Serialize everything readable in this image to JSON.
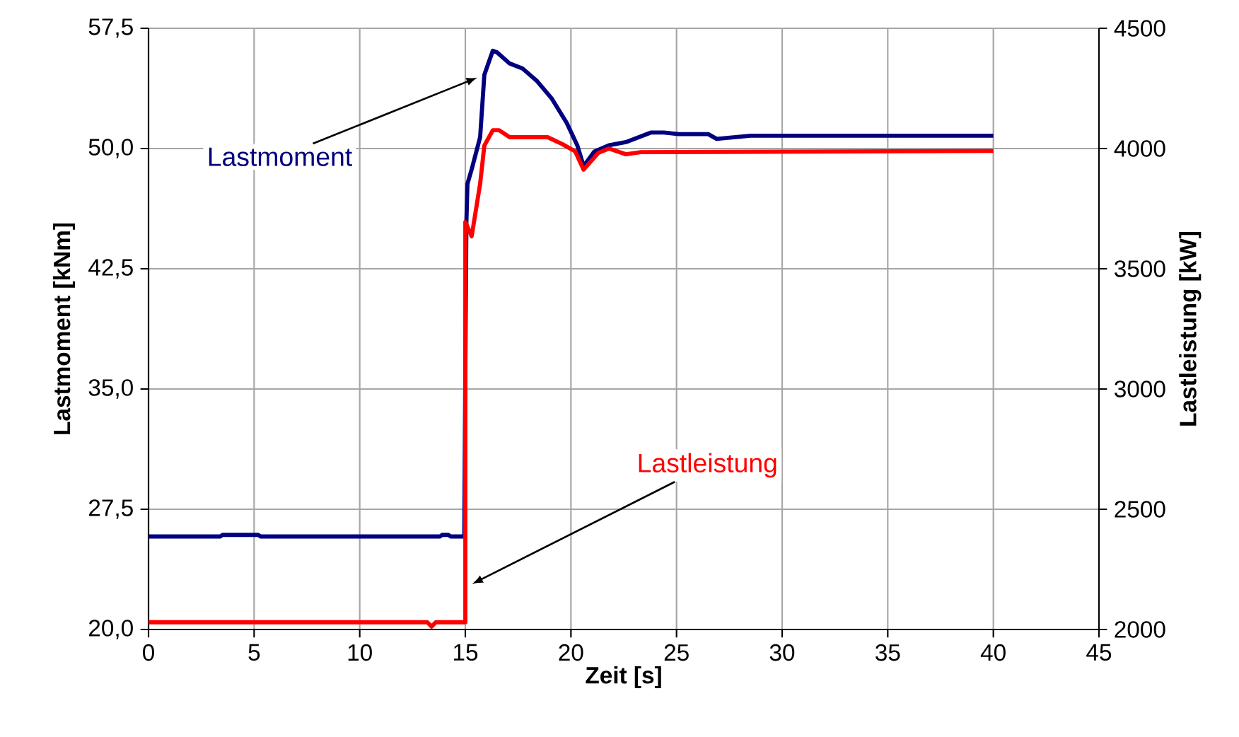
{
  "chart_data": {
    "type": "line",
    "xlabel": "Zeit [s]",
    "ylabel": "Lastmoment [kNm]",
    "y2label": "Lastleistung [kW]",
    "xlim": [
      0,
      45
    ],
    "xticks": [
      0,
      5,
      10,
      15,
      20,
      25,
      30,
      35,
      40,
      45
    ],
    "ylim": [
      20,
      57.5
    ],
    "yticks": [
      {
        "value": 20,
        "label": "20,0"
      },
      {
        "value": 27.5,
        "label": "27,5"
      },
      {
        "value": 35,
        "label": "35,0"
      },
      {
        "value": 42.5,
        "label": "42,5"
      },
      {
        "value": 50,
        "label": "50,0"
      },
      {
        "value": 57.5,
        "label": "57,5"
      }
    ],
    "y2lim": [
      2000,
      4500
    ],
    "y2ticks": [
      2000,
      2500,
      3000,
      3500,
      4000,
      4500
    ],
    "grid": true,
    "series": [
      {
        "name": "Lastmoment",
        "color": "#000080",
        "x": [
          0,
          3.4,
          3.5,
          5.2,
          5.3,
          13.8,
          13.9,
          14.2,
          14.3,
          14.95,
          15.0,
          15.05,
          15.1,
          15.3,
          15.7,
          15.9,
          16.3,
          16.5,
          17.1,
          17.7,
          18.4,
          19.1,
          19.8,
          20.3,
          20.6,
          21.1,
          21.8,
          22.6,
          23.8,
          24.4,
          25.1,
          26.5,
          26.9,
          28.5,
          40.0
        ],
        "values": [
          25.8,
          25.8,
          25.9,
          25.9,
          25.8,
          25.8,
          25.9,
          25.9,
          25.8,
          25.8,
          36.0,
          45.4,
          47.8,
          48.7,
          50.7,
          54.6,
          56.1,
          56.0,
          55.3,
          55.0,
          54.2,
          53.1,
          51.6,
          50.2,
          48.9,
          49.8,
          50.2,
          50.4,
          51.0,
          51.0,
          50.9,
          50.9,
          50.6,
          50.8,
          50.8
        ]
      },
      {
        "name": "Lastleistung",
        "color": "#ff0000",
        "axis": "y2",
        "x": [
          0,
          13.2,
          13.4,
          13.6,
          14.9,
          15.0,
          15.0,
          15.3,
          15.7,
          15.9,
          16.3,
          16.6,
          17.1,
          18.9,
          19.6,
          20.2,
          20.6,
          21.3,
          21.8,
          22.6,
          23.3,
          40.0
        ],
        "values": [
          2030,
          2030,
          2012,
          2030,
          2030,
          2030,
          3694,
          3635,
          3853,
          4012,
          4076,
          4076,
          4047,
          4047,
          4018,
          3988,
          3912,
          3982,
          4000,
          3976,
          3985,
          3990
        ]
      }
    ]
  }
}
